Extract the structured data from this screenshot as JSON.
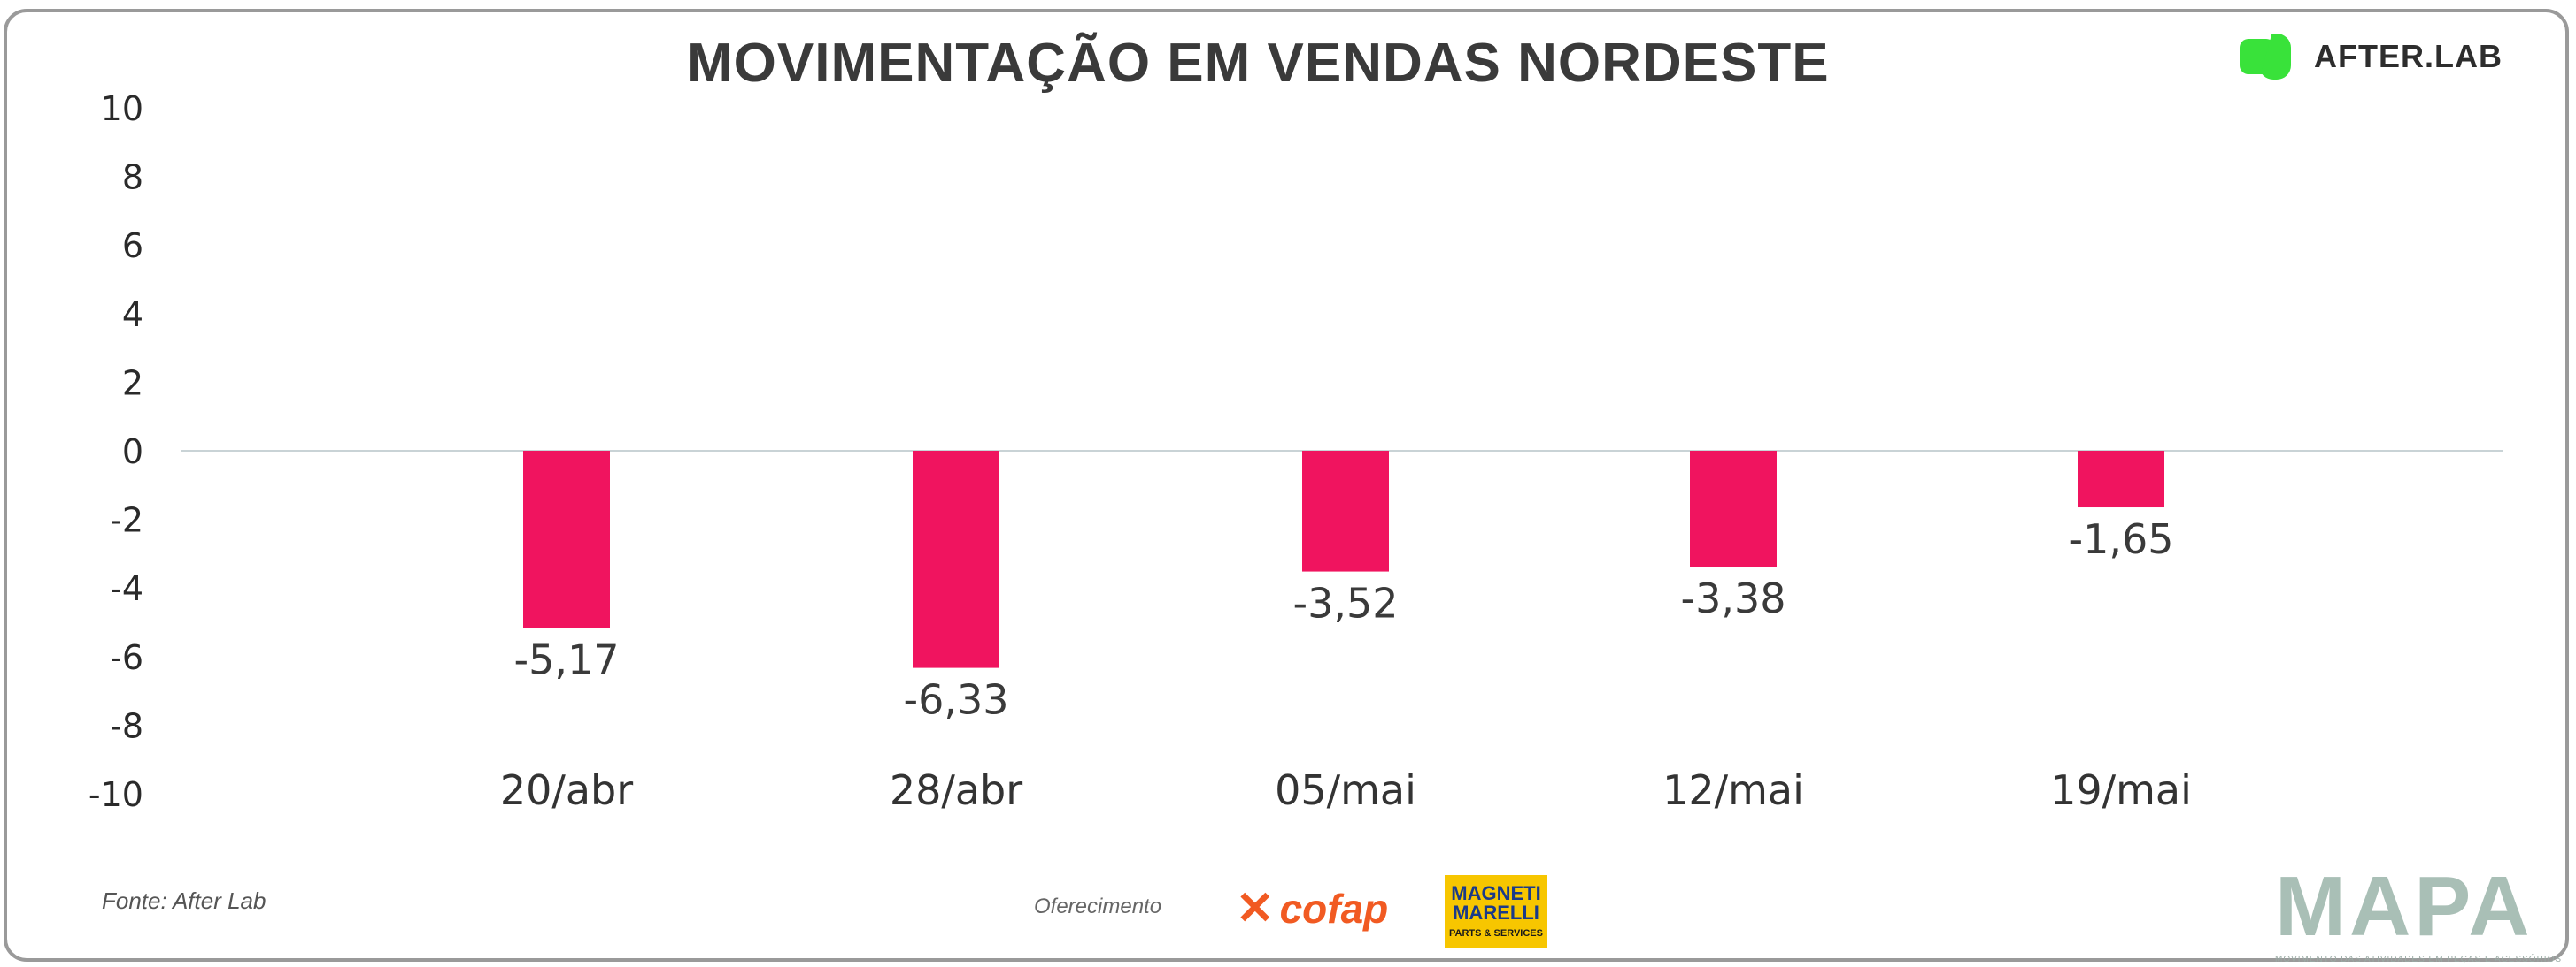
{
  "title": "MOVIMENTAÇÃO EM VENDAS NORDESTE",
  "brand_logo": {
    "name": "AFTER.LAB",
    "color": "#39e23a"
  },
  "chart_data": {
    "type": "bar",
    "categories": [
      "20/abr",
      "28/abr",
      "05/mai",
      "12/mai",
      "19/mai"
    ],
    "values": [
      -5.17,
      -6.33,
      -3.52,
      -3.38,
      -1.65
    ],
    "value_labels": [
      "-5,17",
      "-6,33",
      "-3,52",
      "-3,38",
      "-1,65"
    ],
    "yticks": [
      10,
      8,
      6,
      4,
      2,
      0,
      -2,
      -4,
      -6,
      -8,
      -10
    ],
    "ylim": [
      -10,
      10
    ],
    "bar_color": "#f0145f",
    "xlabel": "",
    "ylabel": "",
    "grid": false
  },
  "footer": {
    "source": "Fonte: After Lab",
    "offered_by": "Oferecimento",
    "sponsors": [
      {
        "name": "cofap",
        "color": "#f15a22"
      },
      {
        "name": "MAGNETI MARELLI",
        "tagline": "PARTS & SERVICES",
        "color": "#f7c600"
      }
    ],
    "mapa": {
      "name": "MAPA",
      "tagline": "MOVIMENTO DAS ATIVIDADES EM PEÇAS E ACESSÓRIOS"
    }
  }
}
